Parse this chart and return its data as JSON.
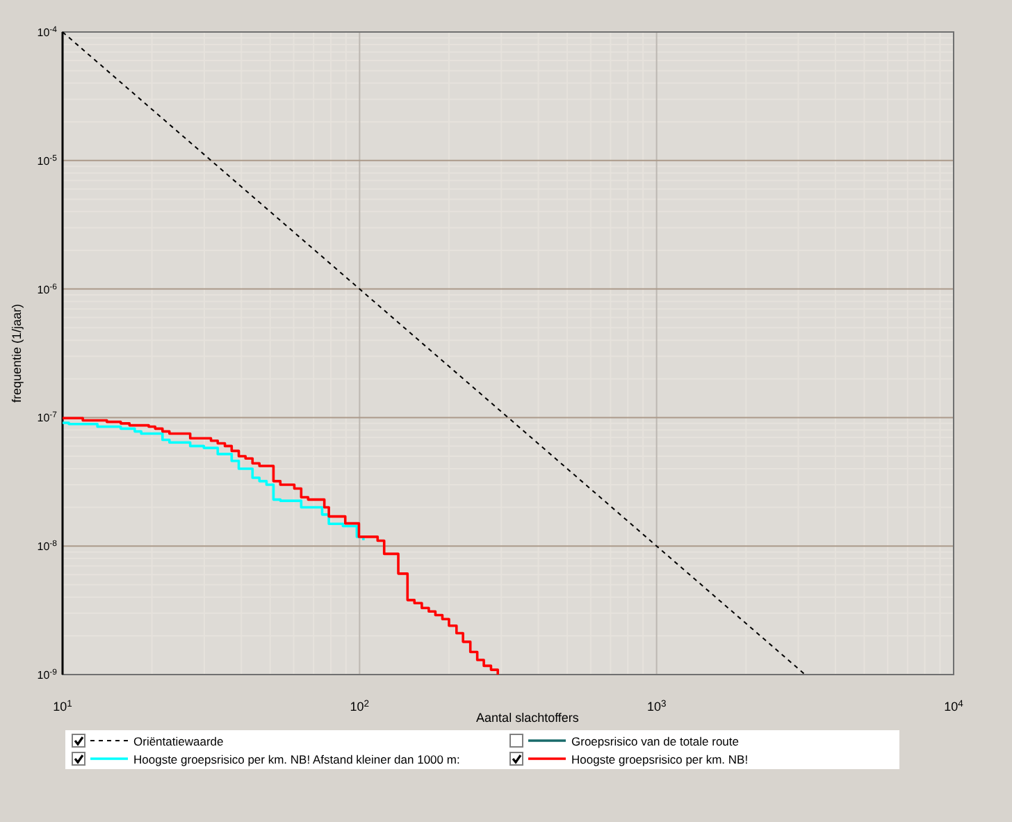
{
  "chart_data": {
    "type": "step",
    "xlabel": "Aantal slachtoffers",
    "ylabel": "frequentie (1/jaar)",
    "log": "xy",
    "grid": true,
    "legend": "bottom",
    "xlim": [
      10,
      10000
    ],
    "ylim": [
      1e-09,
      0.0001
    ],
    "xticks": [
      {
        "value": 10,
        "label": "10$^{1}$"
      },
      {
        "value": 100,
        "label": "10$^{2}$"
      },
      {
        "value": 1000,
        "label": "10$^{3}$"
      },
      {
        "value": 10000,
        "label": "10$^{4}$"
      }
    ],
    "yticks": [
      {
        "value": 1e-09,
        "label": "10$^{-9}$"
      },
      {
        "value": 1e-08,
        "label": "10$^{-8}$"
      },
      {
        "value": 1e-07,
        "label": "10$^{-7}$"
      },
      {
        "value": 1e-06,
        "label": "10$^{-6}$"
      },
      {
        "value": 1e-05,
        "label": "10$^{-5}$"
      },
      {
        "value": 0.0001,
        "label": "10$^{-4}$"
      }
    ],
    "series": [
      {
        "name": "Oriëntatiewaarde",
        "type": "line",
        "line_style": "dashed",
        "color": "#000000",
        "x": [
          10,
          100,
          1000,
          3162
        ],
        "values": [
          0.0001,
          1e-06,
          1e-08,
          1e-09
        ]
      },
      {
        "name": "Groepsrisico van de totale route",
        "color": "#1a6b6b"
      },
      {
        "name": "Hoogste groepsrisico per km. NB! Afstand kleiner dan 1000 m:",
        "color": "#00ffff",
        "x": [
          10,
          10.5,
          13.1,
          15.7,
          17.5,
          18.4,
          21.7,
          22.9,
          26.9,
          29.9,
          33.3,
          37.1,
          39.2,
          43.6,
          46,
          48.6,
          51.3,
          54.1,
          63.6,
          74.8,
          78.8,
          87.9,
          97.9,
          103
        ],
        "values": [
          9.1e-08,
          8.9e-08,
          8.5e-08,
          8.2e-08,
          7.8e-08,
          7.5e-08,
          6.7e-08,
          6.4e-08,
          6e-08,
          5.8e-08,
          5.2e-08,
          4.6e-08,
          4e-08,
          3.4e-08,
          3.2e-08,
          3e-08,
          2.3e-08,
          2.25e-08,
          2e-08,
          1.76e-08,
          1.49e-08,
          1.43e-08,
          1.18e-08,
          1.11e-08
        ]
      },
      {
        "name": "Hoogste groepsrisico per km. NB!",
        "color": "#ff0000",
        "x": [
          10,
          11.7,
          14.1,
          15.7,
          16.8,
          19.5,
          20.5,
          21.7,
          22.9,
          26.9,
          31.6,
          33.3,
          35.2,
          37.1,
          39.2,
          41.3,
          43.6,
          46,
          51.3,
          54.1,
          60.3,
          63.6,
          67.1,
          76.1,
          78.8,
          83.2,
          89.5,
          99.5,
          115,
          121,
          135,
          145,
          153,
          162,
          171,
          180,
          190,
          200,
          212,
          223,
          236,
          249,
          262,
          277,
          292
        ],
        "values": [
          9.9e-08,
          9.5e-08,
          9.25e-08,
          9e-08,
          8.7e-08,
          8.5e-08,
          8.2e-08,
          7.8e-08,
          7.5e-08,
          6.9e-08,
          6.6e-08,
          6.3e-08,
          6e-08,
          5.5e-08,
          5e-08,
          4.8e-08,
          4.4e-08,
          4.2e-08,
          3.2e-08,
          3e-08,
          2.8e-08,
          2.4e-08,
          2.3e-08,
          2e-08,
          1.7e-08,
          1.7e-08,
          1.5e-08,
          1.18e-08,
          1.1e-08,
          8.7e-09,
          6.1e-09,
          3.8e-09,
          3.6e-09,
          3.3e-09,
          3.1e-09,
          2.9e-09,
          2.7e-09,
          2.4e-09,
          2.1e-09,
          1.8e-09,
          1.5e-09,
          1.3e-09,
          1.17e-09,
          1.09e-09,
          1e-09
        ]
      }
    ]
  }
}
